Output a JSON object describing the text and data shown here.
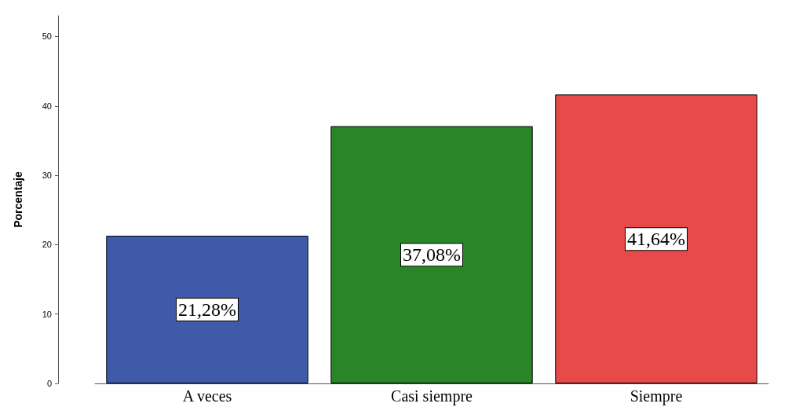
{
  "chart_data": {
    "type": "bar",
    "ylabel": "Porcentaje",
    "categories": [
      "A veces",
      "Casi siempre",
      "Siempre"
    ],
    "values": [
      21.28,
      37.08,
      41.64
    ],
    "colors": [
      "#3f5aa8",
      "#2a8428",
      "#e84a4a"
    ],
    "value_labels": [
      "21,28%",
      "37,08%",
      "41,64%"
    ],
    "ylim": [
      0,
      53
    ],
    "yticks": [
      0,
      10,
      20,
      30,
      40,
      50
    ],
    "grid": false
  }
}
